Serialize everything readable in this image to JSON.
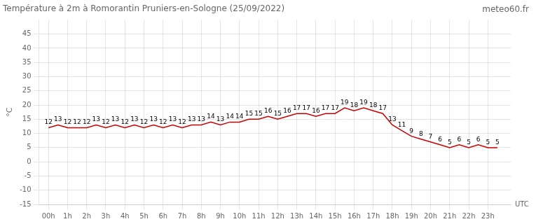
{
  "chart_data": {
    "type": "line",
    "title": "Température à 2m à Romorantin Pruniers-en-Sologne (25/09/2022)",
    "y_label": "°C",
    "annotations": [
      "UTC",
      "meteo60.fr"
    ],
    "x": [
      0,
      0.5,
      1,
      1.5,
      2,
      2.5,
      3,
      3.5,
      4,
      4.5,
      5,
      5.5,
      6,
      6.5,
      7,
      7.5,
      8,
      8.5,
      9,
      9.5,
      10,
      10.5,
      11,
      11.5,
      12,
      12.5,
      13,
      13.5,
      14,
      14.5,
      15,
      15.5,
      16,
      16.5,
      17,
      17.5,
      18,
      18.5,
      19,
      19.5,
      20,
      20.5,
      21,
      21.5,
      22,
      22.5,
      23,
      23.5
    ],
    "values": [
      12,
      13,
      12,
      12,
      12,
      13,
      12,
      13,
      12,
      13,
      12,
      13,
      12,
      13,
      12,
      13,
      13,
      14,
      13,
      14,
      14,
      15,
      15,
      16,
      15,
      16,
      17,
      17,
      16,
      17,
      17,
      19,
      18,
      19,
      18,
      17,
      13,
      11,
      9,
      8,
      7,
      6,
      5,
      6,
      5,
      6,
      5,
      5
    ],
    "color": "#cc0000",
    "xlim": [
      -0.5,
      24.2
    ],
    "xticks": [
      {
        "value": 0,
        "label": "00h"
      },
      {
        "value": 1,
        "label": "1h"
      },
      {
        "value": 2,
        "label": "2h"
      },
      {
        "value": 3,
        "label": "3h"
      },
      {
        "value": 4,
        "label": "4h"
      },
      {
        "value": 5,
        "label": "5h"
      },
      {
        "value": 6,
        "label": "6h"
      },
      {
        "value": 7,
        "label": "7h"
      },
      {
        "value": 8,
        "label": "8h"
      },
      {
        "value": 9,
        "label": "9h"
      },
      {
        "value": 10,
        "label": "10h"
      },
      {
        "value": 11,
        "label": "11h"
      },
      {
        "value": 12,
        "label": "12h"
      },
      {
        "value": 13,
        "label": "13h"
      },
      {
        "value": 14,
        "label": "14h"
      },
      {
        "value": 15,
        "label": "15h"
      },
      {
        "value": 16,
        "label": "16h"
      },
      {
        "value": 17,
        "label": "17h"
      },
      {
        "value": 18,
        "label": "18h"
      },
      {
        "value": 19,
        "label": "19h"
      },
      {
        "value": 20,
        "label": "20h"
      },
      {
        "value": 21,
        "label": "21h"
      },
      {
        "value": 22,
        "label": "22h"
      },
      {
        "value": 23,
        "label": "23h"
      }
    ],
    "ylim": [
      -15,
      50
    ],
    "yticks": [
      -15,
      -10,
      -5,
      0,
      5,
      10,
      15,
      20,
      25,
      30,
      35,
      40,
      45
    ],
    "grid": true,
    "data_labels": true
  }
}
